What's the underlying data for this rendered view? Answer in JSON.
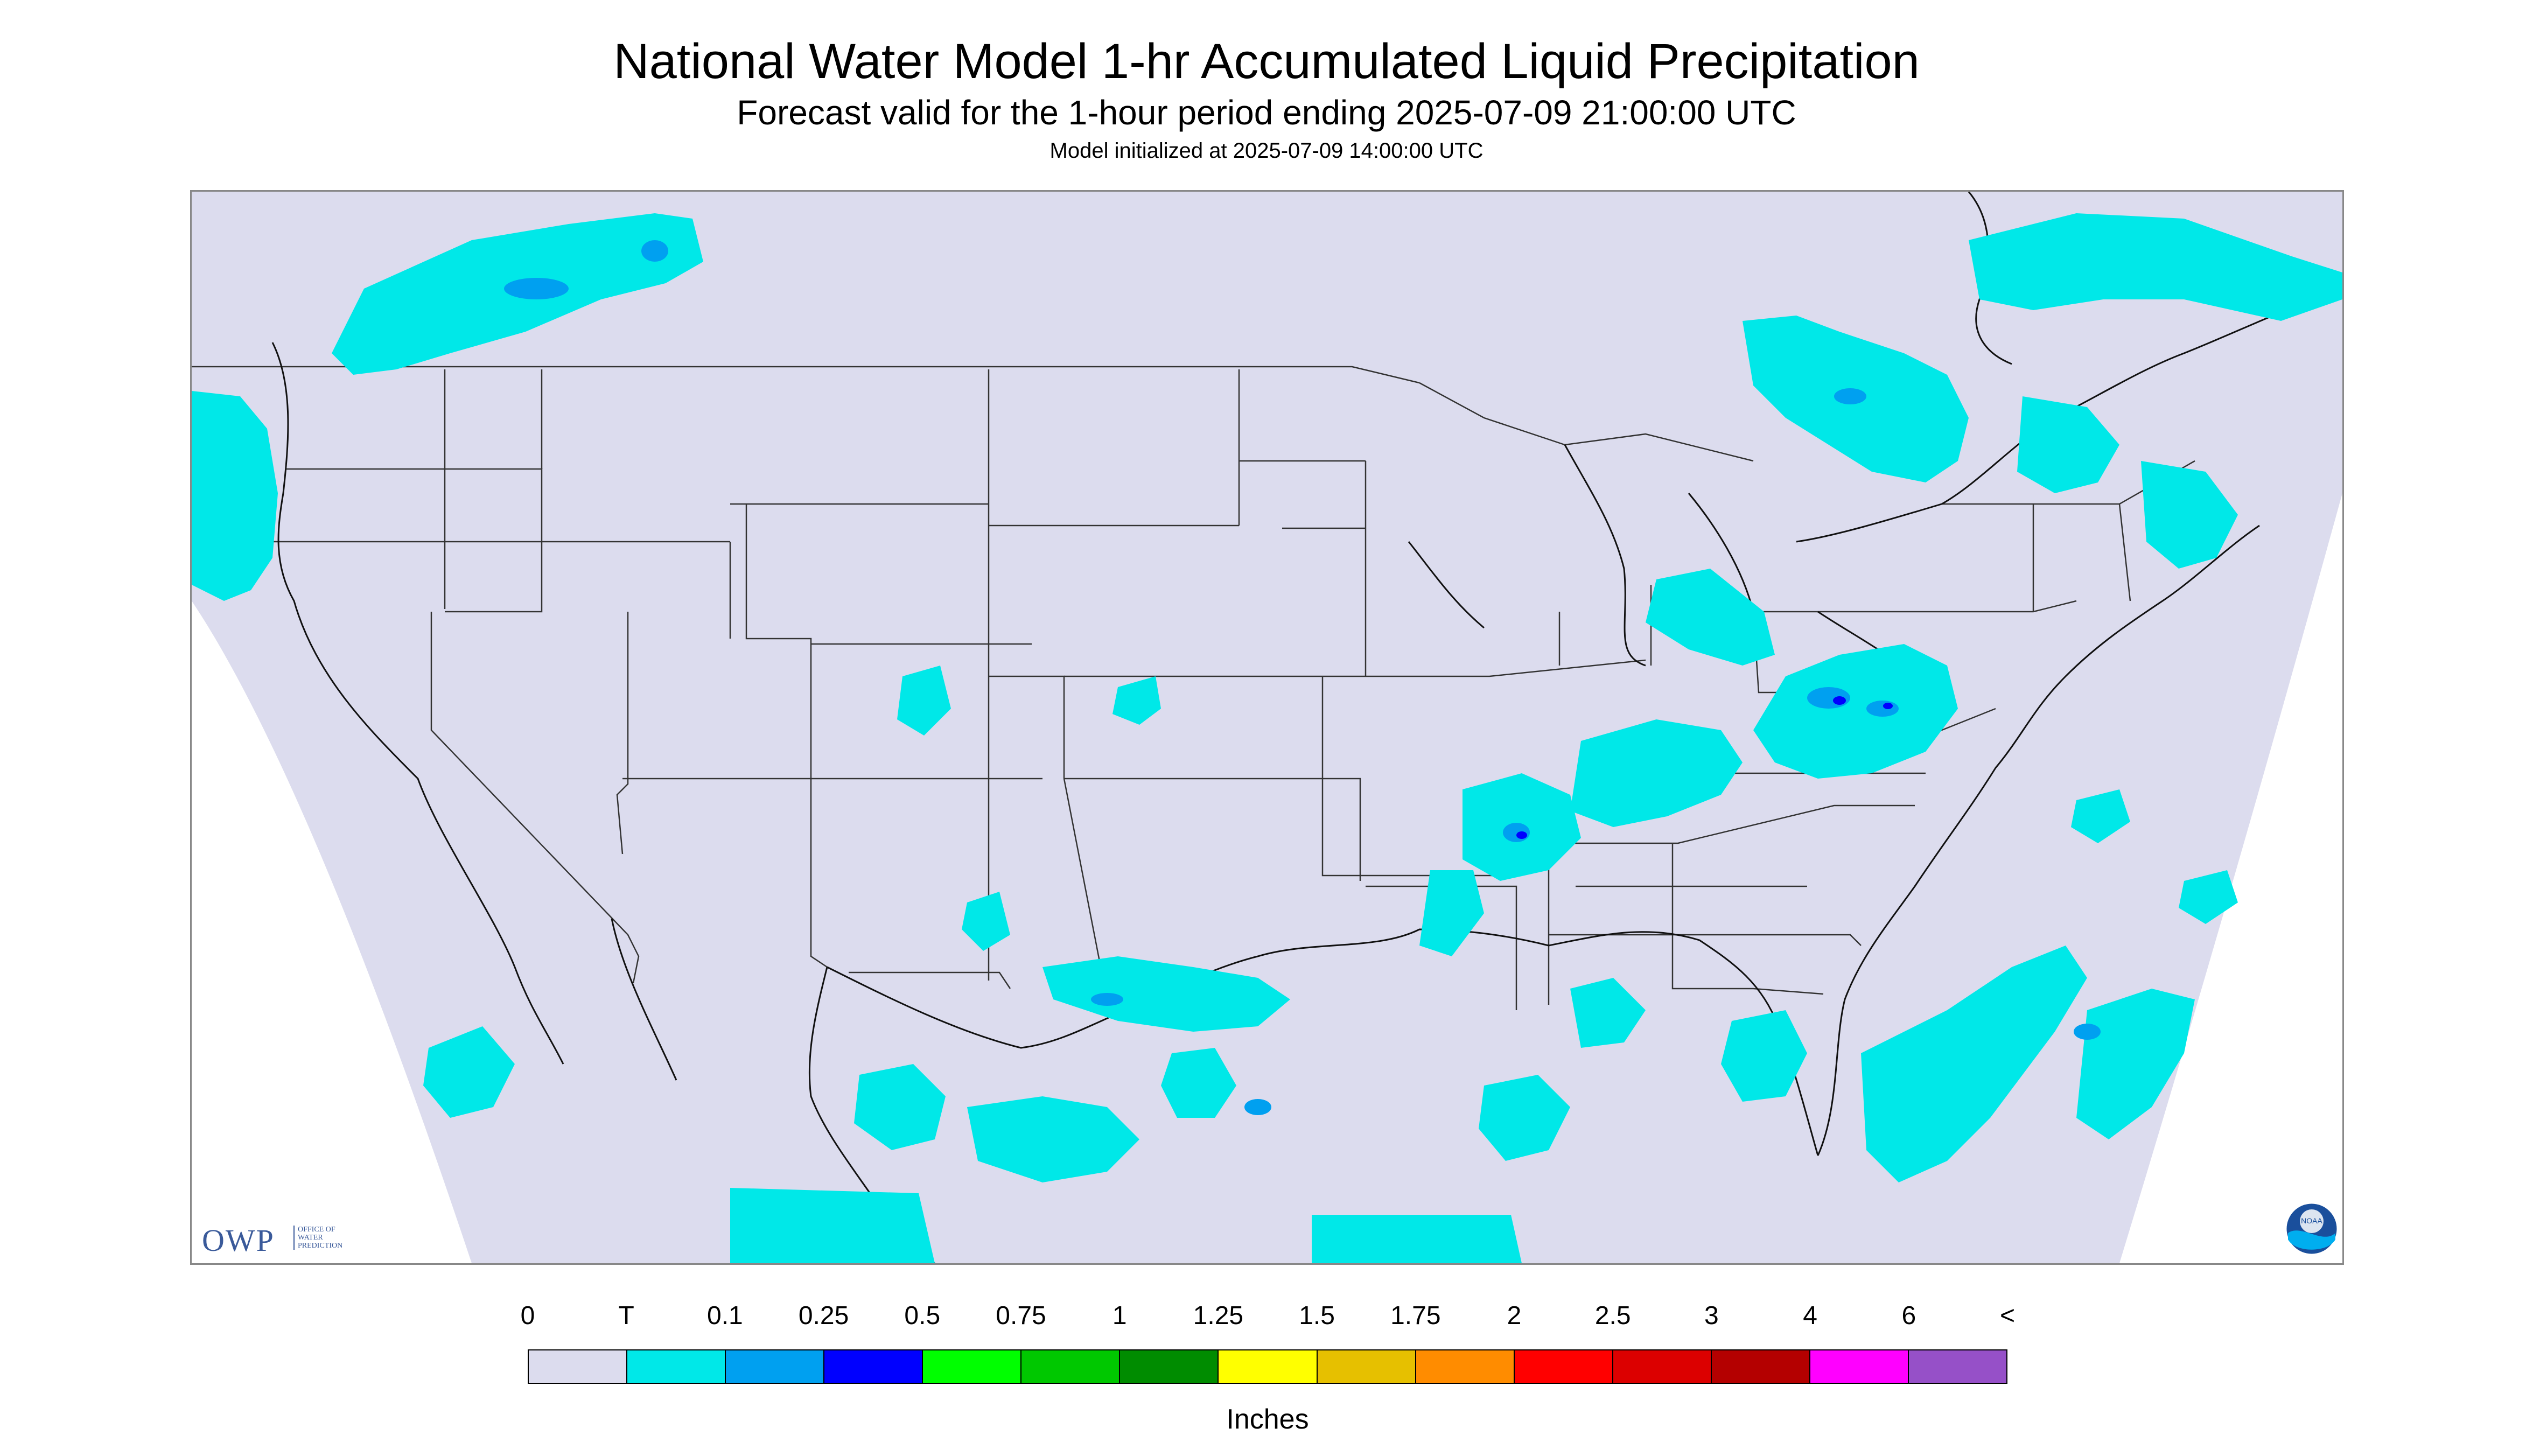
{
  "header": {
    "title": "National Water Model 1-hr Accumulated Liquid Precipitation",
    "subtitle": "Forecast valid for the 1-hour period ending 2025-07-09 21:00:00 UTC",
    "init": "Model initialized at 2025-07-09 14:00:00 UTC"
  },
  "map": {
    "background_color": "#dcdcee",
    "outside_color": "#ffffff",
    "border_color": "#444444"
  },
  "logos": {
    "owp_letters": "OWP",
    "owp_line1": "OFFICE OF",
    "owp_line2": "WATER",
    "owp_line3": "PREDICTION",
    "noaa": "NOAA"
  },
  "legend": {
    "labels": [
      "0",
      "T",
      "0.1",
      "0.25",
      "0.5",
      "0.75",
      "1",
      "1.25",
      "1.5",
      "1.75",
      "2",
      "2.5",
      "3",
      "4",
      "6",
      "<"
    ],
    "colors": [
      "#dcdcee",
      "#00e8e8",
      "#00a0f0",
      "#0000ff",
      "#00ff00",
      "#00c800",
      "#008c00",
      "#ffff00",
      "#e6c000",
      "#ff8c00",
      "#ff0000",
      "#dc0000",
      "#b40000",
      "#ff00ff",
      "#9650c8"
    ],
    "units": "Inches"
  },
  "precip_colors": {
    "trace": "#00e8e8",
    "light": "#00a0f0",
    "moderate": "#0000ff"
  }
}
